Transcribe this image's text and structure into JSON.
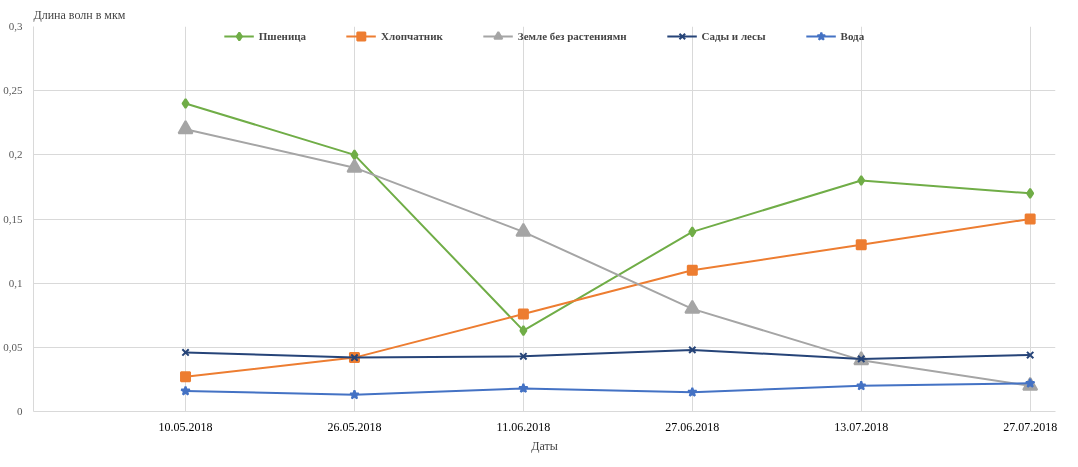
{
  "chart_data": {
    "type": "line",
    "ylabel": "Длина волн в мкм",
    "xlabel": "Даты",
    "categories": [
      "10.05.2018",
      "26.05.2018",
      "11.06.2018",
      "27.06.2018",
      "13.07.2018",
      "27.07.2018"
    ],
    "series": [
      {
        "name": "Пшеница",
        "color": "#70ad47",
        "marker": "diamond",
        "values": [
          0.24,
          0.2,
          0.063,
          0.14,
          0.18,
          0.17
        ]
      },
      {
        "name": "Хлопчатник",
        "color": "#ed7d31",
        "marker": "square",
        "values": [
          0.027,
          0.042,
          0.076,
          0.11,
          0.13,
          0.15
        ]
      },
      {
        "name": "Земле без растениямн",
        "color": "#a5a5a5",
        "marker": "triangle",
        "values": [
          0.22,
          0.19,
          0.14,
          0.08,
          0.04,
          0.02
        ]
      },
      {
        "name": "Сады и лесы",
        "color": "#264478",
        "marker": "cross",
        "values": [
          0.046,
          0.042,
          0.043,
          0.048,
          0.041,
          0.044
        ]
      },
      {
        "name": "Вода",
        "color": "#4472c4",
        "marker": "star",
        "values": [
          0.016,
          0.013,
          0.018,
          0.015,
          0.02,
          0.022
        ]
      }
    ],
    "ylim": [
      0,
      0.3
    ],
    "yticks": [
      0,
      {
        "value": 0.05,
        "label": "0,05"
      },
      {
        "value": 0.1,
        "label": "0,1"
      },
      {
        "value": 0.15,
        "label": "0,15"
      },
      {
        "value": 0.2,
        "label": "0,2"
      },
      {
        "value": 0.25,
        "label": "0,25"
      },
      {
        "value": 0.3,
        "label": "0,3"
      }
    ],
    "grid": true,
    "legend": "top",
    "line_style": "solid"
  }
}
